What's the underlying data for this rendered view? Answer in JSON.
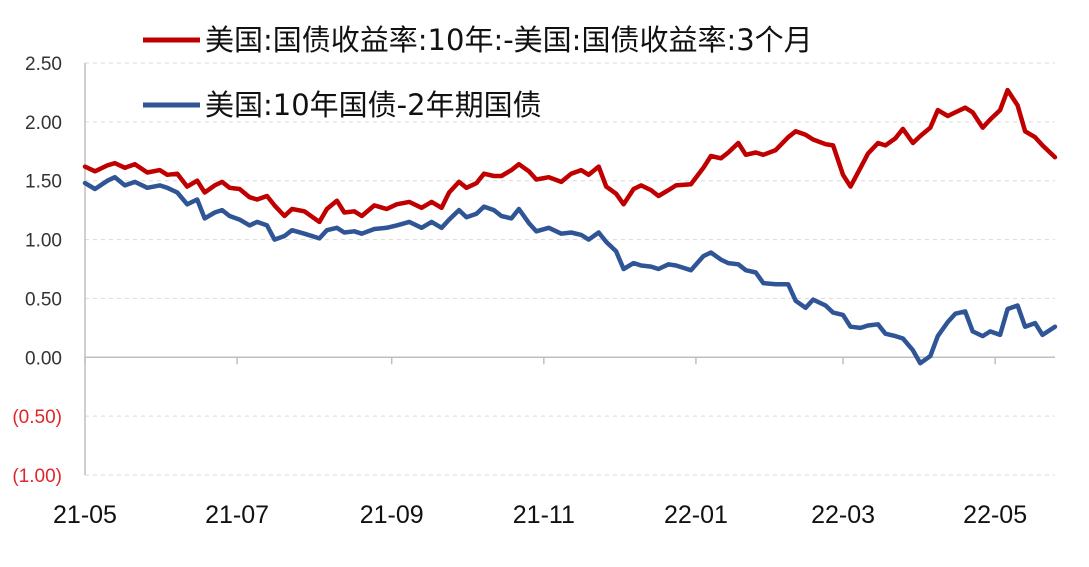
{
  "chart_data": {
    "type": "line",
    "title": "",
    "xlabel": "",
    "ylabel": "",
    "ylim": [
      -1.0,
      2.5
    ],
    "yticks": [
      2.5,
      2.0,
      1.5,
      1.0,
      0.5,
      0.0,
      -0.5,
      -1.0
    ],
    "ytick_labels": [
      "2.50",
      "2.00",
      "1.50",
      "1.00",
      "0.50",
      "0.00",
      "(0.50)",
      "(1.00)"
    ],
    "negative_tick_color": "#e0262b",
    "x_range": [
      "2021-05-01",
      "2022-05-25"
    ],
    "xticks": [
      "2021-05-01",
      "2021-07-01",
      "2021-09-01",
      "2021-11-01",
      "2022-01-01",
      "2022-03-01",
      "2022-05-01"
    ],
    "xtick_labels": [
      "21-05",
      "21-07",
      "21-09",
      "21-11",
      "22-01",
      "22-03",
      "22-05"
    ],
    "grid": "horizontal-dashed",
    "legend_position": "top",
    "series": [
      {
        "name": "美国:国债收益率:10年:-美国:国债收益率:3个月",
        "color": "#c00000",
        "points": [
          [
            "2021-05-01",
            1.62
          ],
          [
            "2021-05-05",
            1.58
          ],
          [
            "2021-05-10",
            1.63
          ],
          [
            "2021-05-13",
            1.65
          ],
          [
            "2021-05-17",
            1.61
          ],
          [
            "2021-05-21",
            1.64
          ],
          [
            "2021-05-26",
            1.57
          ],
          [
            "2021-05-31",
            1.59
          ],
          [
            "2021-06-03",
            1.55
          ],
          [
            "2021-06-07",
            1.56
          ],
          [
            "2021-06-11",
            1.45
          ],
          [
            "2021-06-15",
            1.5
          ],
          [
            "2021-06-18",
            1.4
          ],
          [
            "2021-06-22",
            1.46
          ],
          [
            "2021-06-25",
            1.49
          ],
          [
            "2021-06-28",
            1.44
          ],
          [
            "2021-07-02",
            1.43
          ],
          [
            "2021-07-06",
            1.36
          ],
          [
            "2021-07-09",
            1.34
          ],
          [
            "2021-07-13",
            1.37
          ],
          [
            "2021-07-16",
            1.29
          ],
          [
            "2021-07-20",
            1.2
          ],
          [
            "2021-07-23",
            1.26
          ],
          [
            "2021-07-28",
            1.24
          ],
          [
            "2021-08-03",
            1.15
          ],
          [
            "2021-08-06",
            1.26
          ],
          [
            "2021-08-10",
            1.33
          ],
          [
            "2021-08-13",
            1.23
          ],
          [
            "2021-08-17",
            1.24
          ],
          [
            "2021-08-20",
            1.2
          ],
          [
            "2021-08-25",
            1.29
          ],
          [
            "2021-08-30",
            1.26
          ],
          [
            "2021-09-03",
            1.3
          ],
          [
            "2021-09-08",
            1.32
          ],
          [
            "2021-09-13",
            1.27
          ],
          [
            "2021-09-17",
            1.32
          ],
          [
            "2021-09-21",
            1.27
          ],
          [
            "2021-09-24",
            1.4
          ],
          [
            "2021-09-28",
            1.49
          ],
          [
            "2021-10-01",
            1.44
          ],
          [
            "2021-10-05",
            1.48
          ],
          [
            "2021-10-08",
            1.56
          ],
          [
            "2021-10-12",
            1.54
          ],
          [
            "2021-10-15",
            1.54
          ],
          [
            "2021-10-19",
            1.59
          ],
          [
            "2021-10-22",
            1.64
          ],
          [
            "2021-10-26",
            1.58
          ],
          [
            "2021-10-29",
            1.51
          ],
          [
            "2021-11-03",
            1.53
          ],
          [
            "2021-11-08",
            1.49
          ],
          [
            "2021-11-12",
            1.56
          ],
          [
            "2021-11-16",
            1.59
          ],
          [
            "2021-11-19",
            1.55
          ],
          [
            "2021-11-23",
            1.62
          ],
          [
            "2021-11-26",
            1.45
          ],
          [
            "2021-11-30",
            1.39
          ],
          [
            "2021-12-03",
            1.3
          ],
          [
            "2021-12-07",
            1.43
          ],
          [
            "2021-12-10",
            1.46
          ],
          [
            "2021-12-14",
            1.42
          ],
          [
            "2021-12-17",
            1.37
          ],
          [
            "2021-12-21",
            1.42
          ],
          [
            "2021-12-24",
            1.46
          ],
          [
            "2021-12-30",
            1.47
          ],
          [
            "2022-01-04",
            1.61
          ],
          [
            "2022-01-07",
            1.71
          ],
          [
            "2022-01-11",
            1.69
          ],
          [
            "2022-01-14",
            1.74
          ],
          [
            "2022-01-18",
            1.82
          ],
          [
            "2022-01-21",
            1.72
          ],
          [
            "2022-01-25",
            1.74
          ],
          [
            "2022-01-28",
            1.72
          ],
          [
            "2022-02-02",
            1.76
          ],
          [
            "2022-02-07",
            1.87
          ],
          [
            "2022-02-10",
            1.92
          ],
          [
            "2022-02-14",
            1.89
          ],
          [
            "2022-02-17",
            1.85
          ],
          [
            "2022-02-22",
            1.81
          ],
          [
            "2022-02-25",
            1.8
          ],
          [
            "2022-03-01",
            1.55
          ],
          [
            "2022-03-04",
            1.45
          ],
          [
            "2022-03-08",
            1.61
          ],
          [
            "2022-03-11",
            1.73
          ],
          [
            "2022-03-15",
            1.82
          ],
          [
            "2022-03-18",
            1.8
          ],
          [
            "2022-03-22",
            1.86
          ],
          [
            "2022-03-25",
            1.94
          ],
          [
            "2022-03-29",
            1.82
          ],
          [
            "2022-04-01",
            1.88
          ],
          [
            "2022-04-05",
            1.95
          ],
          [
            "2022-04-08",
            2.1
          ],
          [
            "2022-04-12",
            2.05
          ],
          [
            "2022-04-15",
            2.08
          ],
          [
            "2022-04-19",
            2.12
          ],
          [
            "2022-04-22",
            2.08
          ],
          [
            "2022-04-26",
            1.95
          ],
          [
            "2022-04-29",
            2.02
          ],
          [
            "2022-05-03",
            2.1
          ],
          [
            "2022-05-06",
            2.27
          ],
          [
            "2022-05-10",
            2.14
          ],
          [
            "2022-05-13",
            1.92
          ],
          [
            "2022-05-17",
            1.87
          ],
          [
            "2022-05-20",
            1.8
          ],
          [
            "2022-05-25",
            1.7
          ]
        ]
      },
      {
        "name": "美国:10年国债-2年期国债",
        "color": "#2f5597",
        "points": [
          [
            "2021-05-01",
            1.48
          ],
          [
            "2021-05-05",
            1.43
          ],
          [
            "2021-05-10",
            1.5
          ],
          [
            "2021-05-13",
            1.53
          ],
          [
            "2021-05-17",
            1.46
          ],
          [
            "2021-05-21",
            1.49
          ],
          [
            "2021-05-26",
            1.44
          ],
          [
            "2021-05-31",
            1.46
          ],
          [
            "2021-06-03",
            1.44
          ],
          [
            "2021-06-07",
            1.4
          ],
          [
            "2021-06-11",
            1.3
          ],
          [
            "2021-06-15",
            1.34
          ],
          [
            "2021-06-18",
            1.18
          ],
          [
            "2021-06-22",
            1.23
          ],
          [
            "2021-06-25",
            1.25
          ],
          [
            "2021-06-28",
            1.2
          ],
          [
            "2021-07-02",
            1.17
          ],
          [
            "2021-07-06",
            1.12
          ],
          [
            "2021-07-09",
            1.15
          ],
          [
            "2021-07-13",
            1.12
          ],
          [
            "2021-07-16",
            1.0
          ],
          [
            "2021-07-20",
            1.03
          ],
          [
            "2021-07-23",
            1.08
          ],
          [
            "2021-07-28",
            1.05
          ],
          [
            "2021-08-03",
            1.01
          ],
          [
            "2021-08-06",
            1.08
          ],
          [
            "2021-08-10",
            1.1
          ],
          [
            "2021-08-13",
            1.06
          ],
          [
            "2021-08-17",
            1.07
          ],
          [
            "2021-08-20",
            1.05
          ],
          [
            "2021-08-25",
            1.09
          ],
          [
            "2021-08-30",
            1.1
          ],
          [
            "2021-09-03",
            1.12
          ],
          [
            "2021-09-08",
            1.15
          ],
          [
            "2021-09-13",
            1.1
          ],
          [
            "2021-09-17",
            1.15
          ],
          [
            "2021-09-21",
            1.1
          ],
          [
            "2021-09-24",
            1.17
          ],
          [
            "2021-09-28",
            1.25
          ],
          [
            "2021-10-01",
            1.19
          ],
          [
            "2021-10-05",
            1.22
          ],
          [
            "2021-10-08",
            1.28
          ],
          [
            "2021-10-12",
            1.25
          ],
          [
            "2021-10-15",
            1.2
          ],
          [
            "2021-10-19",
            1.18
          ],
          [
            "2021-10-22",
            1.26
          ],
          [
            "2021-10-26",
            1.14
          ],
          [
            "2021-10-29",
            1.07
          ],
          [
            "2021-11-03",
            1.1
          ],
          [
            "2021-11-08",
            1.05
          ],
          [
            "2021-11-12",
            1.06
          ],
          [
            "2021-11-16",
            1.04
          ],
          [
            "2021-11-19",
            1.0
          ],
          [
            "2021-11-23",
            1.06
          ],
          [
            "2021-11-26",
            0.98
          ],
          [
            "2021-11-30",
            0.9
          ],
          [
            "2021-12-03",
            0.75
          ],
          [
            "2021-12-07",
            0.8
          ],
          [
            "2021-12-10",
            0.78
          ],
          [
            "2021-12-14",
            0.77
          ],
          [
            "2021-12-17",
            0.75
          ],
          [
            "2021-12-21",
            0.79
          ],
          [
            "2021-12-24",
            0.78
          ],
          [
            "2021-12-30",
            0.74
          ],
          [
            "2022-01-04",
            0.86
          ],
          [
            "2022-01-07",
            0.89
          ],
          [
            "2022-01-11",
            0.83
          ],
          [
            "2022-01-14",
            0.8
          ],
          [
            "2022-01-18",
            0.79
          ],
          [
            "2022-01-21",
            0.74
          ],
          [
            "2022-01-25",
            0.72
          ],
          [
            "2022-01-28",
            0.63
          ],
          [
            "2022-02-02",
            0.62
          ],
          [
            "2022-02-07",
            0.62
          ],
          [
            "2022-02-10",
            0.48
          ],
          [
            "2022-02-14",
            0.42
          ],
          [
            "2022-02-17",
            0.49
          ],
          [
            "2022-02-22",
            0.44
          ],
          [
            "2022-02-25",
            0.38
          ],
          [
            "2022-03-01",
            0.36
          ],
          [
            "2022-03-04",
            0.26
          ],
          [
            "2022-03-08",
            0.25
          ],
          [
            "2022-03-11",
            0.27
          ],
          [
            "2022-03-15",
            0.28
          ],
          [
            "2022-03-18",
            0.2
          ],
          [
            "2022-03-22",
            0.18
          ],
          [
            "2022-03-25",
            0.16
          ],
          [
            "2022-03-29",
            0.06
          ],
          [
            "2022-04-01",
            -0.05
          ],
          [
            "2022-04-05",
            0.01
          ],
          [
            "2022-04-08",
            0.18
          ],
          [
            "2022-04-12",
            0.3
          ],
          [
            "2022-04-15",
            0.37
          ],
          [
            "2022-04-19",
            0.39
          ],
          [
            "2022-04-22",
            0.22
          ],
          [
            "2022-04-26",
            0.18
          ],
          [
            "2022-04-29",
            0.22
          ],
          [
            "2022-05-03",
            0.19
          ],
          [
            "2022-05-06",
            0.41
          ],
          [
            "2022-05-10",
            0.44
          ],
          [
            "2022-05-13",
            0.26
          ],
          [
            "2022-05-17",
            0.29
          ],
          [
            "2022-05-20",
            0.19
          ],
          [
            "2022-05-25",
            0.26
          ]
        ]
      }
    ]
  }
}
